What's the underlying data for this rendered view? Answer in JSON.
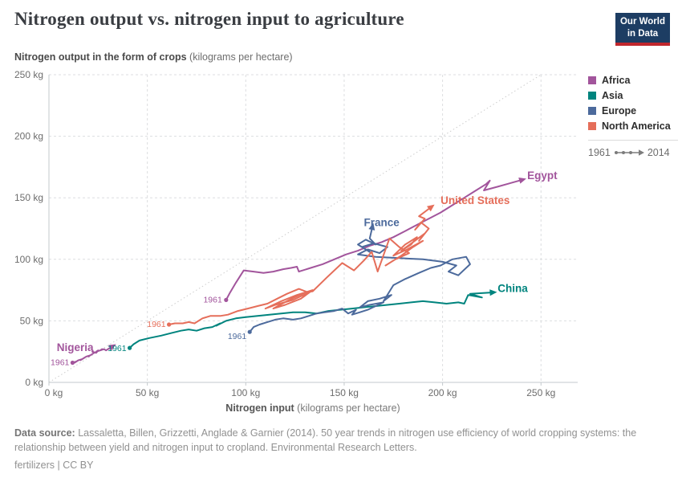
{
  "page": {
    "title": "Nitrogen output vs. nitrogen input to agriculture"
  },
  "logo": {
    "line1": "Our World",
    "line2": "in Data"
  },
  "subtitle": {
    "bold": "Nitrogen output in the form of crops",
    "rest": " (kilograms per hectare)"
  },
  "legend": {
    "items": [
      {
        "label": "Africa",
        "color": "#a2559c"
      },
      {
        "label": "Asia",
        "color": "#00847e"
      },
      {
        "label": "Europe",
        "color": "#4c6a9c"
      },
      {
        "label": "North America",
        "color": "#e56e5a"
      }
    ],
    "start_year": "1961",
    "end_year": "2014"
  },
  "footer": {
    "source_label": "Data source:",
    "source_text": " Lassaletta, Billen, Grizzetti, Anglade & Garnier (2014). 50 year trends in nitrogen use efficiency of world cropping systems: the relationship between yield and nitrogen input to cropland. Environmental Research Letters.",
    "note": "fertilizers | CC BY"
  },
  "chart_data": {
    "type": "line",
    "variant": "connected-scatter",
    "title": "Nitrogen output vs. nitrogen input to agriculture",
    "x_axis": {
      "label_bold": "Nitrogen input",
      "label_rest": " (kilograms per hectare)",
      "ticks": [
        0,
        50,
        100,
        150,
        200,
        250
      ],
      "tick_suffix": " kg",
      "range": [
        0,
        268
      ]
    },
    "y_axis": {
      "label_bold": "Nitrogen output in the form of crops",
      "label_rest": " (kilograms per hectare)",
      "ticks": [
        0,
        50,
        100,
        150,
        200,
        250
      ],
      "tick_suffix": " kg",
      "range": [
        0,
        250
      ]
    },
    "grid": true,
    "diagonal_line": {
      "from": [
        0,
        0
      ],
      "to": [
        250,
        250
      ]
    },
    "legend_position": "right",
    "start_year": "1961",
    "end_year": "2014",
    "series": [
      {
        "name": "Nigeria",
        "continent": "Africa",
        "color": "#a2559c",
        "name_label": {
          "x": 4,
          "y": 25.5,
          "anchor": "start"
        },
        "start_label": {
          "dx": -4,
          "dy": 3,
          "anchor": "end"
        },
        "points": [
          [
            12,
            16
          ],
          [
            14,
            17
          ],
          [
            13,
            16
          ],
          [
            15,
            18
          ],
          [
            17,
            19
          ],
          [
            16,
            18
          ],
          [
            18,
            20
          ],
          [
            17,
            19
          ],
          [
            19,
            21
          ],
          [
            21,
            22
          ],
          [
            20,
            21
          ],
          [
            22,
            23
          ],
          [
            21,
            22
          ],
          [
            23,
            24
          ],
          [
            22,
            25
          ],
          [
            24,
            24
          ],
          [
            25,
            26
          ],
          [
            24,
            25
          ],
          [
            26,
            26
          ],
          [
            27,
            27
          ],
          [
            26,
            26
          ],
          [
            28,
            27
          ],
          [
            29,
            26
          ],
          [
            30,
            27
          ],
          [
            31,
            28
          ]
        ]
      },
      {
        "name": "Egypt",
        "continent": "Africa",
        "color": "#a2559c",
        "name_label": {
          "x": 243,
          "y": 165,
          "anchor": "start"
        },
        "start_label": {
          "dx": -5,
          "dy": 3,
          "anchor": "end"
        },
        "points": [
          [
            90,
            67
          ],
          [
            92,
            73
          ],
          [
            95,
            81
          ],
          [
            99,
            91
          ],
          [
            104,
            90
          ],
          [
            109,
            89
          ],
          [
            114,
            90
          ],
          [
            119,
            92
          ],
          [
            123,
            93
          ],
          [
            126,
            94
          ],
          [
            127,
            90
          ],
          [
            133,
            93
          ],
          [
            139,
            96
          ],
          [
            145,
            100
          ],
          [
            151,
            104
          ],
          [
            157,
            107
          ],
          [
            163,
            111
          ],
          [
            169,
            114
          ],
          [
            175,
            118
          ],
          [
            181,
            123
          ],
          [
            187,
            128
          ],
          [
            193,
            133
          ],
          [
            199,
            138
          ],
          [
            205,
            144
          ],
          [
            211,
            150
          ],
          [
            217,
            156
          ],
          [
            222,
            161
          ],
          [
            224,
            164
          ],
          [
            221,
            156
          ],
          [
            228,
            159
          ],
          [
            239,
            164
          ]
        ]
      },
      {
        "name": "China",
        "continent": "Asia",
        "color": "#00847e",
        "name_label": {
          "x": 228,
          "y": 73.5,
          "anchor": "start"
        },
        "start_label": {
          "dx": -4,
          "dy": 4,
          "anchor": "end"
        },
        "points": [
          [
            41,
            28
          ],
          [
            43,
            31
          ],
          [
            46,
            34
          ],
          [
            51,
            36
          ],
          [
            57,
            38
          ],
          [
            62,
            40
          ],
          [
            67,
            42
          ],
          [
            71,
            43
          ],
          [
            75,
            42
          ],
          [
            79,
            44
          ],
          [
            83,
            45
          ],
          [
            87,
            48
          ],
          [
            85,
            46
          ],
          [
            90,
            50
          ],
          [
            95,
            52
          ],
          [
            100,
            53
          ],
          [
            106,
            54
          ],
          [
            112,
            55
          ],
          [
            118,
            56
          ],
          [
            124,
            57
          ],
          [
            130,
            57
          ],
          [
            136,
            56
          ],
          [
            142,
            58
          ],
          [
            148,
            59
          ],
          [
            154,
            60
          ],
          [
            160,
            61
          ],
          [
            166,
            62
          ],
          [
            172,
            63
          ],
          [
            178,
            64
          ],
          [
            184,
            65
          ],
          [
            190,
            66
          ],
          [
            196,
            65
          ],
          [
            202,
            64
          ],
          [
            208,
            65
          ],
          [
            211,
            64
          ],
          [
            213,
            71
          ],
          [
            220,
            69
          ],
          [
            214,
            72
          ],
          [
            224,
            73
          ]
        ]
      },
      {
        "name": "France",
        "continent": "Europe",
        "color": "#4c6a9c",
        "name_label": {
          "x": 160,
          "y": 127,
          "anchor": "start"
        },
        "start_label": {
          "dx": -4,
          "dy": 9,
          "anchor": "end"
        },
        "points": [
          [
            102,
            41
          ],
          [
            104,
            45
          ],
          [
            107,
            47
          ],
          [
            111,
            49
          ],
          [
            115,
            51
          ],
          [
            119,
            52
          ],
          [
            124,
            51
          ],
          [
            128,
            52
          ],
          [
            132,
            54
          ],
          [
            136,
            56
          ],
          [
            140,
            57
          ],
          [
            145,
            58
          ],
          [
            149,
            60
          ],
          [
            152,
            56
          ],
          [
            156,
            59
          ],
          [
            154,
            55
          ],
          [
            158,
            57
          ],
          [
            162,
            59
          ],
          [
            166,
            62
          ],
          [
            170,
            65
          ],
          [
            163,
            63
          ],
          [
            158,
            61
          ],
          [
            162,
            66
          ],
          [
            168,
            68
          ],
          [
            174,
            71
          ],
          [
            170,
            66
          ],
          [
            175,
            79
          ],
          [
            181,
            84
          ],
          [
            188,
            89
          ],
          [
            194,
            93
          ],
          [
            199,
            95
          ],
          [
            205,
            100
          ],
          [
            212,
            102
          ],
          [
            214,
            96
          ],
          [
            208,
            87
          ],
          [
            203,
            90
          ],
          [
            207,
            95
          ],
          [
            200,
            98
          ],
          [
            190,
            100
          ],
          [
            178,
            101
          ],
          [
            166,
            102
          ],
          [
            157,
            104
          ],
          [
            162,
            108
          ],
          [
            168,
            105
          ],
          [
            172,
            110
          ],
          [
            165,
            113
          ],
          [
            159,
            110
          ],
          [
            163,
            106
          ],
          [
            157,
            112
          ],
          [
            161,
            116
          ],
          [
            166,
            112
          ],
          [
            163,
            117
          ],
          [
            164,
            124
          ]
        ]
      },
      {
        "name": "United States",
        "continent": "North America",
        "color": "#e56e5a",
        "name_label": {
          "x": 199,
          "y": 145,
          "anchor": "start"
        },
        "start_label": {
          "dx": -4,
          "dy": 3,
          "anchor": "end"
        },
        "points": [
          [
            61,
            47
          ],
          [
            64,
            48
          ],
          [
            68,
            48
          ],
          [
            71,
            49
          ],
          [
            74,
            48
          ],
          [
            78,
            52
          ],
          [
            82,
            54
          ],
          [
            87,
            54
          ],
          [
            91,
            55
          ],
          [
            96,
            58
          ],
          [
            101,
            60
          ],
          [
            106,
            62
          ],
          [
            111,
            64
          ],
          [
            116,
            68
          ],
          [
            121,
            72
          ],
          [
            127,
            76
          ],
          [
            132,
            73
          ],
          [
            124,
            67
          ],
          [
            115,
            63
          ],
          [
            110,
            60
          ],
          [
            118,
            66
          ],
          [
            126,
            71
          ],
          [
            134,
            75
          ],
          [
            128,
            68
          ],
          [
            120,
            63
          ],
          [
            114,
            60
          ],
          [
            122,
            67
          ],
          [
            130,
            73
          ],
          [
            134,
            74
          ],
          [
            141,
            85
          ],
          [
            149,
            97
          ],
          [
            155,
            91
          ],
          [
            160,
            99
          ],
          [
            164,
            106
          ],
          [
            167,
            90
          ],
          [
            173,
            117
          ],
          [
            178,
            110
          ],
          [
            183,
            105
          ],
          [
            176,
            100
          ],
          [
            171,
            95
          ],
          [
            179,
            103
          ],
          [
            185,
            110
          ],
          [
            190,
            115
          ],
          [
            182,
            108
          ],
          [
            175,
            103
          ],
          [
            181,
            112
          ],
          [
            187,
            118
          ],
          [
            184,
            112
          ],
          [
            179,
            107
          ],
          [
            185,
            114
          ],
          [
            191,
            121
          ],
          [
            188,
            115
          ],
          [
            193,
            125
          ],
          [
            189,
            130
          ],
          [
            186,
            124
          ],
          [
            191,
            133
          ],
          [
            188,
            135
          ],
          [
            193,
            141
          ]
        ]
      }
    ]
  }
}
